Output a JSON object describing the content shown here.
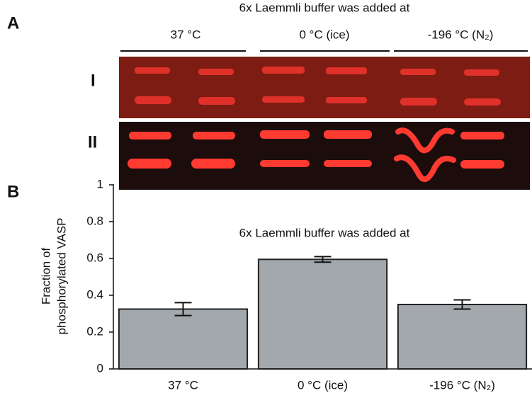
{
  "panel_a": {
    "label": "A",
    "header": "6x Laemmli buffer was added at",
    "groups": [
      "37 °C",
      "0 °C (ice)",
      "-196 °C (N₂)"
    ],
    "rows": [
      "I",
      "II"
    ]
  },
  "chart_data": {
    "type": "bar",
    "panel_label": "B",
    "annotation": "6x Laemmli buffer was added at",
    "y_label": [
      "Fraction of",
      "phosphorylated VASP"
    ],
    "categories": [
      "37 °C",
      "0 °C (ice)",
      "-196 °C (N₂)"
    ],
    "values": [
      0.325,
      0.595,
      0.35
    ],
    "errors": [
      0.035,
      0.015,
      0.025
    ],
    "color": "#a3a8ad",
    "ylim": [
      0,
      1
    ],
    "yticks": [
      0,
      0.2,
      0.4,
      0.6,
      0.8,
      1
    ]
  }
}
